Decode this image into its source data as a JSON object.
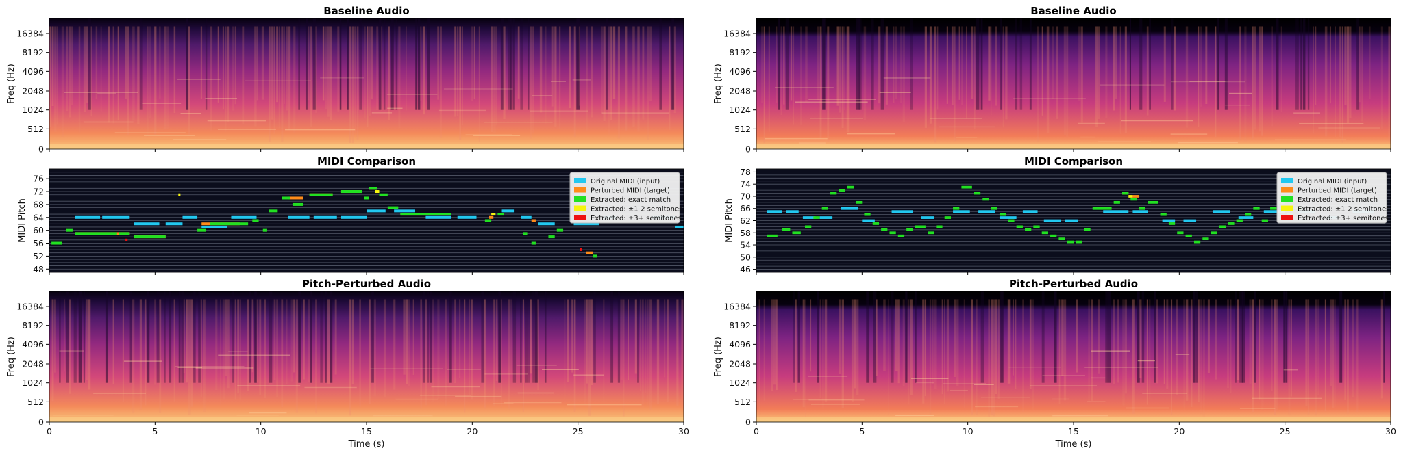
{
  "figure": {
    "x_axis_label": "Time (s)",
    "x_ticks": [
      "0",
      "5",
      "10",
      "15",
      "20",
      "25",
      "30"
    ],
    "legend": [
      {
        "label": "Original MIDI (input)",
        "color": "#22c8f0"
      },
      {
        "label": "Perturbed MIDI (target)",
        "color": "#ff8c1a"
      },
      {
        "label": "Extracted: exact match",
        "color": "#22e022"
      },
      {
        "label": "Extracted: ±1-2 semitones",
        "color": "#f5f510"
      },
      {
        "label": "Extracted: ±3+ semitones",
        "color": "#ee1111"
      }
    ],
    "colors": {
      "spec_dark": "#0b0218",
      "spec_mid": "#8c2a7c",
      "spec_bright": "#f5a063",
      "midi_bg": "#0b0d1c",
      "midi_grid": "#5a6070"
    }
  },
  "chart_data": [
    {
      "type": "heatmap",
      "panel": "left-top",
      "title": "Baseline Audio",
      "ylabel": "Freq (Hz)",
      "xlabel": "",
      "xlim": [
        0,
        30
      ],
      "y_ticks": [
        "0",
        "512",
        "1024",
        "2048",
        "4096",
        "8192",
        "16384"
      ],
      "y_scale": "log-like",
      "colormap": "magma"
    },
    {
      "type": "scatter",
      "panel": "left-middle",
      "title": "MIDI Comparison",
      "ylabel": "MIDI Pitch",
      "xlabel": "",
      "xlim": [
        0,
        30
      ],
      "ylim": [
        47,
        79
      ],
      "y_ticks": [
        "48",
        "52",
        "56",
        "60",
        "64",
        "68",
        "72",
        "76"
      ],
      "legend_position": "top-right",
      "series": [
        {
          "name": "Original MIDI (input)",
          "color": "#22c8f0",
          "notes": [
            [
              1.2,
              2.4,
              64
            ],
            [
              2.5,
              3.8,
              64
            ],
            [
              4.0,
              5.2,
              62
            ],
            [
              5.5,
              6.3,
              62
            ],
            [
              6.3,
              7.0,
              64
            ],
            [
              7.2,
              8.4,
              61
            ],
            [
              8.6,
              9.8,
              64
            ],
            [
              11.3,
              12.3,
              64
            ],
            [
              12.5,
              13.6,
              64
            ],
            [
              13.8,
              15.0,
              64
            ],
            [
              15.0,
              15.9,
              66
            ],
            [
              16.3,
              17.3,
              66
            ],
            [
              17.8,
              19.0,
              64
            ],
            [
              19.3,
              20.2,
              64
            ],
            [
              21.4,
              22.0,
              66
            ],
            [
              22.3,
              22.8,
              64
            ],
            [
              23.1,
              23.9,
              62
            ],
            [
              24.8,
              26.0,
              62
            ],
            [
              26.2,
              26.8,
              64
            ],
            [
              28.5,
              29.6,
              64
            ],
            [
              29.6,
              30.0,
              61
            ]
          ]
        },
        {
          "name": "Perturbed MIDI (target)",
          "color": "#ff8c1a",
          "notes": [
            [
              1.2,
              3.8,
              59
            ],
            [
              4.0,
              5.5,
              58
            ],
            [
              7.2,
              9.0,
              62
            ],
            [
              11.3,
              12.0,
              70
            ],
            [
              12.3,
              13.4,
              71
            ],
            [
              13.8,
              14.8,
              72
            ],
            [
              15.1,
              15.5,
              73
            ],
            [
              16.6,
              19.0,
              65
            ],
            [
              20.8,
              21.0,
              64
            ],
            [
              22.8,
              23.0,
              63
            ],
            [
              25.4,
              25.7,
              53
            ]
          ]
        },
        {
          "name": "Extracted: exact match",
          "color": "#22e022",
          "notes": [
            [
              0.1,
              0.6,
              56
            ],
            [
              0.8,
              1.1,
              60
            ],
            [
              1.2,
              3.2,
              59
            ],
            [
              3.3,
              3.8,
              59
            ],
            [
              4.0,
              5.5,
              58
            ],
            [
              7.0,
              7.4,
              60
            ],
            [
              7.6,
              9.4,
              62
            ],
            [
              9.6,
              9.9,
              63
            ],
            [
              10.1,
              10.3,
              60
            ],
            [
              10.4,
              10.8,
              66
            ],
            [
              11.0,
              11.4,
              70
            ],
            [
              11.5,
              12.0,
              68
            ],
            [
              12.3,
              13.4,
              71
            ],
            [
              13.8,
              14.8,
              72
            ],
            [
              14.9,
              15.1,
              70
            ],
            [
              15.1,
              15.5,
              73
            ],
            [
              15.6,
              16.0,
              71
            ],
            [
              16.0,
              16.5,
              67
            ],
            [
              16.6,
              19.0,
              65
            ],
            [
              20.6,
              20.9,
              63
            ],
            [
              21.2,
              21.5,
              65
            ],
            [
              22.4,
              22.6,
              59
            ],
            [
              22.8,
              23.0,
              56
            ],
            [
              23.6,
              23.9,
              58
            ],
            [
              24.0,
              24.3,
              60
            ],
            [
              25.7,
              25.9,
              52
            ]
          ]
        },
        {
          "name": "Extracted: ±1-2 semitones",
          "color": "#f5f510",
          "notes": [
            [
              6.1,
              6.2,
              71
            ],
            [
              15.4,
              15.6,
              72
            ],
            [
              20.9,
              21.1,
              65
            ]
          ]
        },
        {
          "name": "Extracted: ±3+ semitones",
          "color": "#ee1111",
          "notes": [
            [
              3.6,
              3.7,
              57
            ],
            [
              25.1,
              25.2,
              54
            ]
          ]
        }
      ]
    },
    {
      "type": "heatmap",
      "panel": "left-bottom",
      "title": "Pitch-Perturbed Audio",
      "ylabel": "Freq (Hz)",
      "xlabel": "Time (s)",
      "xlim": [
        0,
        30
      ],
      "y_ticks": [
        "0",
        "512",
        "1024",
        "2048",
        "4096",
        "8192",
        "16384"
      ],
      "colormap": "magma"
    },
    {
      "type": "heatmap",
      "panel": "right-top",
      "title": "Baseline Audio",
      "ylabel": "Freq (Hz)",
      "xlabel": "",
      "xlim": [
        0,
        30
      ],
      "y_ticks": [
        "0",
        "512",
        "1024",
        "2048",
        "4096",
        "8192",
        "16384"
      ],
      "colormap": "magma"
    },
    {
      "type": "scatter",
      "panel": "right-middle",
      "title": "MIDI Comparison",
      "ylabel": "MIDI Pitch",
      "xlabel": "",
      "xlim": [
        0,
        30
      ],
      "ylim": [
        45,
        79
      ],
      "y_ticks": [
        "46",
        "50",
        "54",
        "58",
        "62",
        "66",
        "70",
        "74",
        "78"
      ],
      "legend_position": "top-right",
      "series": [
        {
          "name": "Original MIDI (input)",
          "color": "#22c8f0",
          "notes": [
            [
              0.5,
              1.2,
              65
            ],
            [
              1.4,
              2.0,
              65
            ],
            [
              2.2,
              2.8,
              63
            ],
            [
              3.0,
              3.6,
              63
            ],
            [
              4.0,
              4.8,
              66
            ],
            [
              5.0,
              5.6,
              62
            ],
            [
              6.4,
              7.4,
              65
            ],
            [
              7.8,
              8.4,
              63
            ],
            [
              9.3,
              10.1,
              65
            ],
            [
              10.5,
              11.3,
              65
            ],
            [
              11.5,
              12.3,
              63
            ],
            [
              12.6,
              13.3,
              65
            ],
            [
              13.6,
              14.4,
              62
            ],
            [
              14.6,
              15.2,
              62
            ],
            [
              16.4,
              17.6,
              65
            ],
            [
              17.8,
              18.5,
              65
            ],
            [
              19.2,
              19.8,
              62
            ],
            [
              20.2,
              20.8,
              62
            ],
            [
              21.6,
              22.4,
              65
            ],
            [
              22.8,
              23.5,
              63
            ],
            [
              24.0,
              25.0,
              65
            ],
            [
              25.6,
              26.4,
              65
            ],
            [
              27.0,
              27.5,
              63
            ],
            [
              28.2,
              29.2,
              65
            ]
          ]
        },
        {
          "name": "Perturbed MIDI (target)",
          "color": "#ff8c1a",
          "notes": [
            [
              17.3,
              17.6,
              71
            ],
            [
              17.8,
              18.1,
              70
            ]
          ]
        },
        {
          "name": "Extracted: exact match",
          "color": "#22e022",
          "notes": [
            [
              0.5,
              1.0,
              57
            ],
            [
              1.2,
              1.6,
              59
            ],
            [
              1.7,
              2.1,
              58
            ],
            [
              2.3,
              2.6,
              60
            ],
            [
              2.7,
              3.0,
              63
            ],
            [
              3.1,
              3.4,
              66
            ],
            [
              3.5,
              3.8,
              71
            ],
            [
              3.9,
              4.2,
              72
            ],
            [
              4.3,
              4.6,
              73
            ],
            [
              4.7,
              5.0,
              68
            ],
            [
              5.1,
              5.4,
              64
            ],
            [
              5.5,
              5.8,
              61
            ],
            [
              5.9,
              6.2,
              59
            ],
            [
              6.3,
              6.6,
              58
            ],
            [
              6.7,
              7.0,
              57
            ],
            [
              7.1,
              7.4,
              59
            ],
            [
              7.5,
              8.0,
              60
            ],
            [
              8.1,
              8.4,
              58
            ],
            [
              8.5,
              8.8,
              60
            ],
            [
              8.9,
              9.2,
              63
            ],
            [
              9.3,
              9.6,
              66
            ],
            [
              9.7,
              10.2,
              73
            ],
            [
              10.3,
              10.6,
              71
            ],
            [
              10.7,
              11.0,
              69
            ],
            [
              11.1,
              11.4,
              66
            ],
            [
              11.5,
              11.8,
              64
            ],
            [
              11.9,
              12.2,
              62
            ],
            [
              12.3,
              12.6,
              60
            ],
            [
              12.7,
              13.0,
              59
            ],
            [
              13.1,
              13.4,
              60
            ],
            [
              13.5,
              13.8,
              58
            ],
            [
              13.9,
              14.2,
              57
            ],
            [
              14.3,
              14.6,
              56
            ],
            [
              14.7,
              15.0,
              55
            ],
            [
              15.1,
              15.4,
              55
            ],
            [
              15.5,
              15.8,
              59
            ],
            [
              15.9,
              16.8,
              66
            ],
            [
              16.9,
              17.2,
              68
            ],
            [
              17.3,
              17.6,
              71
            ],
            [
              17.7,
              18.0,
              69
            ],
            [
              18.1,
              18.4,
              66
            ],
            [
              18.5,
              19.0,
              68
            ],
            [
              19.1,
              19.4,
              64
            ],
            [
              19.5,
              19.8,
              61
            ],
            [
              19.9,
              20.2,
              58
            ],
            [
              20.3,
              20.6,
              57
            ],
            [
              20.7,
              21.0,
              55
            ],
            [
              21.1,
              21.4,
              56
            ],
            [
              21.5,
              21.8,
              58
            ],
            [
              21.9,
              22.2,
              60
            ],
            [
              22.3,
              22.6,
              61
            ],
            [
              22.7,
              23.0,
              62
            ],
            [
              23.1,
              23.4,
              64
            ],
            [
              23.5,
              23.8,
              66
            ],
            [
              23.9,
              24.2,
              62
            ],
            [
              24.3,
              24.6,
              66
            ],
            [
              24.7,
              25.0,
              68
            ],
            [
              25.1,
              25.4,
              64
            ],
            [
              25.5,
              25.8,
              66
            ]
          ]
        },
        {
          "name": "Extracted: ±1-2 semitones",
          "color": "#f5f510",
          "notes": [
            [
              17.6,
              17.8,
              70
            ]
          ]
        },
        {
          "name": "Extracted: ±3+ semitones",
          "color": "#ee1111",
          "notes": []
        }
      ]
    },
    {
      "type": "heatmap",
      "panel": "right-bottom",
      "title": "Pitch-Perturbed Audio",
      "ylabel": "Freq (Hz)",
      "xlabel": "Time (s)",
      "xlim": [
        0,
        30
      ],
      "y_ticks": [
        "0",
        "512",
        "1024",
        "2048",
        "4096",
        "8192",
        "16384"
      ],
      "colormap": "magma"
    }
  ]
}
